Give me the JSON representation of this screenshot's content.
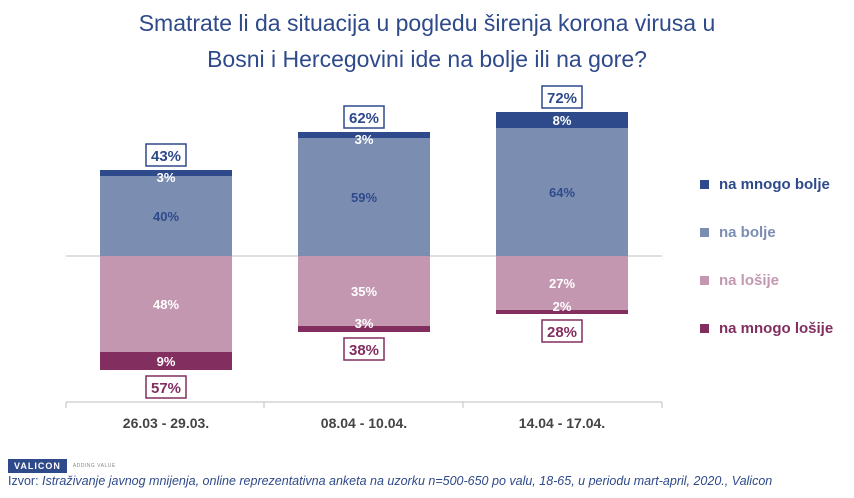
{
  "title_line1": "Smatrate li da situacija u pogledu širenja korona virusa u",
  "title_line2": "Bosni i Hercegovini ide na bolje ili na gore?",
  "colors": {
    "title": "#2e4a8a",
    "na_mnogo_bolje": "#2e4a8a",
    "na_bolje": "#7c8db2",
    "na_losije": "#c497b1",
    "na_mnogo_losije": "#822f60"
  },
  "chart_data": {
    "type": "bar",
    "stacked": "diverging",
    "categories": [
      "26.03 - 29.03.",
      "08.04 - 10.04.",
      "14.04 - 17.04."
    ],
    "series": [
      {
        "name": "na mnogo bolje",
        "direction": "up",
        "values": [
          3,
          3,
          8
        ],
        "labels": [
          "3%",
          "3%",
          "8%"
        ]
      },
      {
        "name": "na bolje",
        "direction": "up",
        "values": [
          40,
          59,
          64
        ],
        "labels": [
          "40%",
          "59%",
          "64%"
        ]
      },
      {
        "name": "na lošije",
        "direction": "down",
        "values": [
          48,
          35,
          27
        ],
        "labels": [
          "48%",
          "35%",
          "27%"
        ]
      },
      {
        "name": "na mnogo lošije",
        "direction": "down",
        "values": [
          9,
          3,
          2
        ],
        "labels": [
          "9%",
          "3%",
          "2%"
        ]
      }
    ],
    "totals_positive": [
      "43%",
      "62%",
      "72%"
    ],
    "totals_negative": [
      "57%",
      "38%",
      "28%"
    ],
    "legend_position": "right"
  },
  "legend": [
    {
      "label": "na mnogo bolje",
      "color": "#2e4a8a"
    },
    {
      "label": "na bolje",
      "color": "#7c8db2"
    },
    {
      "label": "na lošije",
      "color": "#c497b1"
    },
    {
      "label": "na mnogo lošije",
      "color": "#822f60"
    }
  ],
  "footer": {
    "logo": "VALICON",
    "tagline": "ADDING VALUE",
    "source_prefix": "Izvor: ",
    "source_text": "Istraživanje javnog mnijenja, online reprezentativna anketa na uzorku n=500-650 po valu, 18-65, u periodu mart-april, 2020., Valicon"
  }
}
